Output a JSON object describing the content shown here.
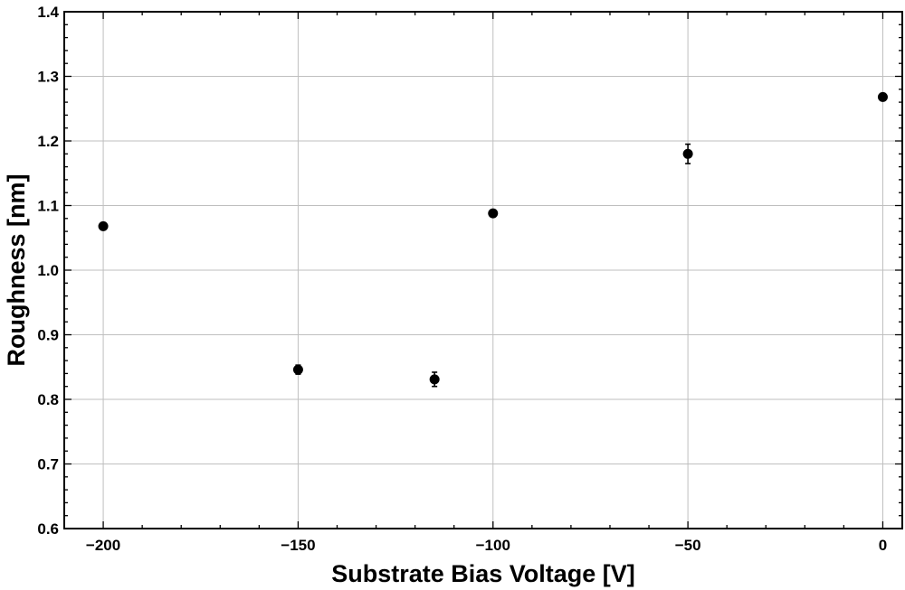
{
  "chart_data": {
    "type": "scatter",
    "title": "",
    "xlabel": "Substrate Bias Voltage [V]",
    "ylabel": "Roughness [nm]",
    "xlim": [
      -210,
      5
    ],
    "ylim": [
      0.6,
      1.4
    ],
    "x_ticks": [
      -200,
      -150,
      -100,
      -50,
      0
    ],
    "x_tick_labels": [
      "−200",
      "−150",
      "−100",
      "−50",
      "0"
    ],
    "y_ticks": [
      0.6,
      0.7,
      0.8,
      0.9,
      1.0,
      1.1,
      1.2,
      1.3,
      1.4
    ],
    "y_tick_labels": [
      "0.6",
      "0.7",
      "0.8",
      "0.9",
      "1.0",
      "1.1",
      "1.2",
      "1.3",
      "1.4"
    ],
    "grid": true,
    "legend": "none",
    "points": [
      {
        "x": -200,
        "y": 1.068,
        "err": 0.003
      },
      {
        "x": -150,
        "y": 0.846,
        "err": 0.007
      },
      {
        "x": -115,
        "y": 0.831,
        "err": 0.011
      },
      {
        "x": -100,
        "y": 1.088,
        "err": 0.005
      },
      {
        "x": -50,
        "y": 1.18,
        "err": 0.015
      },
      {
        "x": 0,
        "y": 1.268,
        "err": 0.004
      }
    ],
    "marker_color": "#000000",
    "grid_color": "#bfbfbf"
  }
}
